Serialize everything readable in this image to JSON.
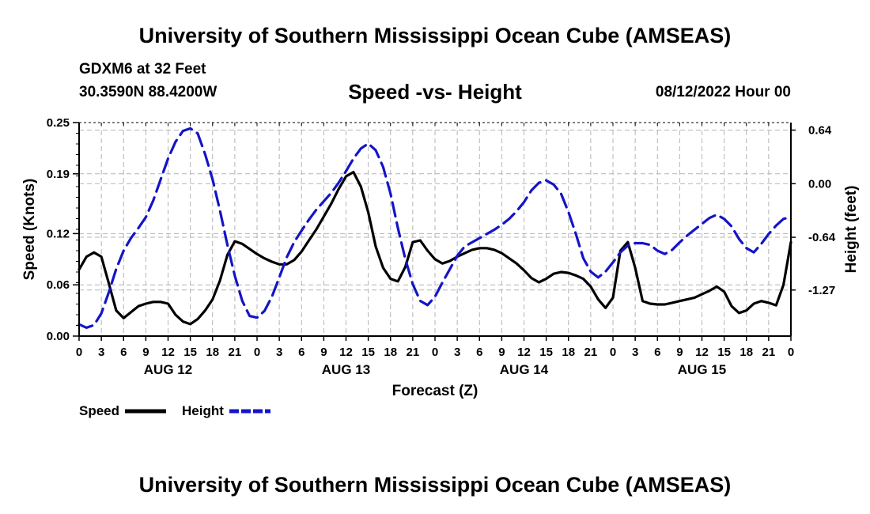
{
  "header": {
    "title": "University of Southern Mississippi Ocean Cube (AMSEAS)",
    "station": "GDXM6 at 32 Feet",
    "location": "30.3590N  88.4200W",
    "chart_title": "Speed -vs- Height",
    "datetime": "08/12/2022 Hour 00"
  },
  "footer": {
    "title": "University of Southern Mississippi Ocean Cube (AMSEAS)"
  },
  "colors": {
    "speed": "#000000",
    "height": "#1414c8",
    "grid": "#b4b4b4"
  },
  "chart_data": {
    "type": "line",
    "title": "Speed -vs- Height",
    "xlabel": "Forecast (Z)",
    "ylabel": "Speed (Knots)",
    "y2label": "Height (feet)",
    "x_range": [
      0,
      96
    ],
    "ylim": [
      0,
      0.25
    ],
    "y2lim": [
      -1.82,
      0.73
    ],
    "y_ticks": [
      0,
      0.06,
      0.12,
      0.19,
      0.25
    ],
    "y_tick_labels": [
      "0.00",
      "0.06",
      "0.12",
      "0.19",
      "0.25"
    ],
    "y2_ticks": [
      0.64,
      0.0,
      -0.64,
      -1.27
    ],
    "y2_tick_labels": [
      "0.64",
      "0.00",
      "-0.64",
      "-1.27"
    ],
    "x_ticks": [
      0,
      3,
      6,
      9,
      12,
      15,
      18,
      21,
      24,
      27,
      30,
      33,
      36,
      39,
      42,
      45,
      48,
      51,
      54,
      57,
      60,
      63,
      66,
      69,
      72,
      75,
      78,
      81,
      84,
      87,
      90,
      93,
      96
    ],
    "x_tick_labels": [
      "0",
      "3",
      "6",
      "9",
      "12",
      "15",
      "18",
      "21",
      "0",
      "3",
      "6",
      "9",
      "12",
      "15",
      "18",
      "21",
      "0",
      "3",
      "6",
      "9",
      "12",
      "15",
      "18",
      "21",
      "0",
      "3",
      "6",
      "9",
      "12",
      "15",
      "18",
      "21",
      "0"
    ],
    "day_labels": [
      {
        "label": "AUG 12",
        "x": 12
      },
      {
        "label": "AUG 13",
        "x": 36
      },
      {
        "label": "AUG 14",
        "x": 60
      },
      {
        "label": "AUG 15",
        "x": 84
      }
    ],
    "series": [
      {
        "name": "Speed",
        "axis": "left",
        "style": "solid",
        "x": [
          0,
          1,
          2,
          3,
          4,
          5,
          6,
          7,
          8,
          9,
          10,
          11,
          12,
          13,
          14,
          15,
          16,
          17,
          18,
          19,
          20,
          21,
          22,
          23,
          24,
          25,
          26,
          27,
          28,
          29,
          30,
          31,
          32,
          33,
          34,
          35,
          36,
          37,
          38,
          39,
          40,
          41,
          42,
          43,
          44,
          45,
          46,
          47,
          48,
          49,
          50,
          51,
          52,
          53,
          54,
          55,
          56,
          57,
          58,
          59,
          60,
          61,
          62,
          63,
          64,
          65,
          66,
          67,
          68,
          69,
          70,
          71,
          72,
          73,
          74,
          75,
          76,
          77,
          78,
          79,
          80,
          81,
          82,
          83,
          84,
          85,
          86,
          87,
          88,
          89,
          90,
          91,
          92,
          93,
          94,
          95,
          96
        ],
        "values": [
          0.078,
          0.093,
          0.098,
          0.093,
          0.062,
          0.03,
          0.021,
          0.028,
          0.035,
          0.038,
          0.04,
          0.04,
          0.038,
          0.025,
          0.017,
          0.014,
          0.02,
          0.03,
          0.043,
          0.065,
          0.095,
          0.111,
          0.108,
          0.102,
          0.096,
          0.091,
          0.087,
          0.084,
          0.084,
          0.089,
          0.099,
          0.112,
          0.125,
          0.14,
          0.155,
          0.172,
          0.187,
          0.192,
          0.175,
          0.145,
          0.105,
          0.08,
          0.067,
          0.064,
          0.081,
          0.11,
          0.112,
          0.1,
          0.09,
          0.085,
          0.088,
          0.093,
          0.097,
          0.101,
          0.103,
          0.103,
          0.101,
          0.097,
          0.091,
          0.085,
          0.077,
          0.068,
          0.063,
          0.067,
          0.073,
          0.075,
          0.074,
          0.071,
          0.067,
          0.058,
          0.043,
          0.033,
          0.045,
          0.1,
          0.11,
          0.08,
          0.041,
          0.038,
          0.037,
          0.037,
          0.039,
          0.041,
          0.043,
          0.045,
          0.049,
          0.053,
          0.058,
          0.052,
          0.035,
          0.027,
          0.03,
          0.038,
          0.041,
          0.039,
          0.036,
          0.06,
          0.11
        ]
      },
      {
        "name": "Height",
        "axis": "right",
        "style": "dashed",
        "x": [
          0,
          1,
          2,
          3,
          4,
          5,
          6,
          7,
          8,
          9,
          10,
          11,
          12,
          13,
          14,
          15,
          16,
          17,
          18,
          19,
          20,
          21,
          22,
          23,
          24,
          25,
          26,
          27,
          28,
          29,
          30,
          31,
          32,
          33,
          34,
          35,
          36,
          37,
          38,
          39,
          40,
          41,
          42,
          43,
          44,
          45,
          46,
          47,
          48,
          49,
          50,
          51,
          52,
          53,
          54,
          55,
          56,
          57,
          58,
          59,
          60,
          61,
          62,
          63,
          64,
          65,
          66,
          67,
          68,
          69,
          70,
          71,
          72,
          73,
          74,
          75,
          76,
          77,
          78,
          79,
          80,
          81,
          82,
          83,
          84,
          85,
          86,
          87,
          88,
          89,
          90,
          91,
          92,
          93,
          94,
          95,
          96
        ],
        "values": [
          -1.68,
          -1.72,
          -1.69,
          -1.55,
          -1.3,
          -1.02,
          -0.8,
          -0.65,
          -0.53,
          -0.4,
          -0.2,
          0.05,
          0.3,
          0.5,
          0.63,
          0.66,
          0.6,
          0.35,
          0.05,
          -0.32,
          -0.73,
          -1.1,
          -1.4,
          -1.58,
          -1.6,
          -1.52,
          -1.35,
          -1.12,
          -0.88,
          -0.7,
          -0.56,
          -0.43,
          -0.31,
          -0.21,
          -0.11,
          0.01,
          0.15,
          0.3,
          0.42,
          0.48,
          0.4,
          0.2,
          -0.12,
          -0.53,
          -0.9,
          -1.2,
          -1.4,
          -1.45,
          -1.35,
          -1.18,
          -1.02,
          -0.86,
          -0.75,
          -0.7,
          -0.65,
          -0.6,
          -0.55,
          -0.49,
          -0.42,
          -0.33,
          -0.22,
          -0.08,
          0.01,
          0.04,
          -0.01,
          -0.12,
          -0.34,
          -0.6,
          -0.89,
          -1.05,
          -1.12,
          -1.05,
          -0.94,
          -0.82,
          -0.74,
          -0.71,
          -0.71,
          -0.73,
          -0.8,
          -0.84,
          -0.79,
          -0.7,
          -0.62,
          -0.55,
          -0.48,
          -0.41,
          -0.37,
          -0.42,
          -0.51,
          -0.66,
          -0.77,
          -0.82,
          -0.72,
          -0.6,
          -0.5,
          -0.42,
          -0.4
        ]
      }
    ],
    "legend": [
      {
        "label": "Speed",
        "style": "solid"
      },
      {
        "label": "Height",
        "style": "dashed"
      }
    ]
  }
}
